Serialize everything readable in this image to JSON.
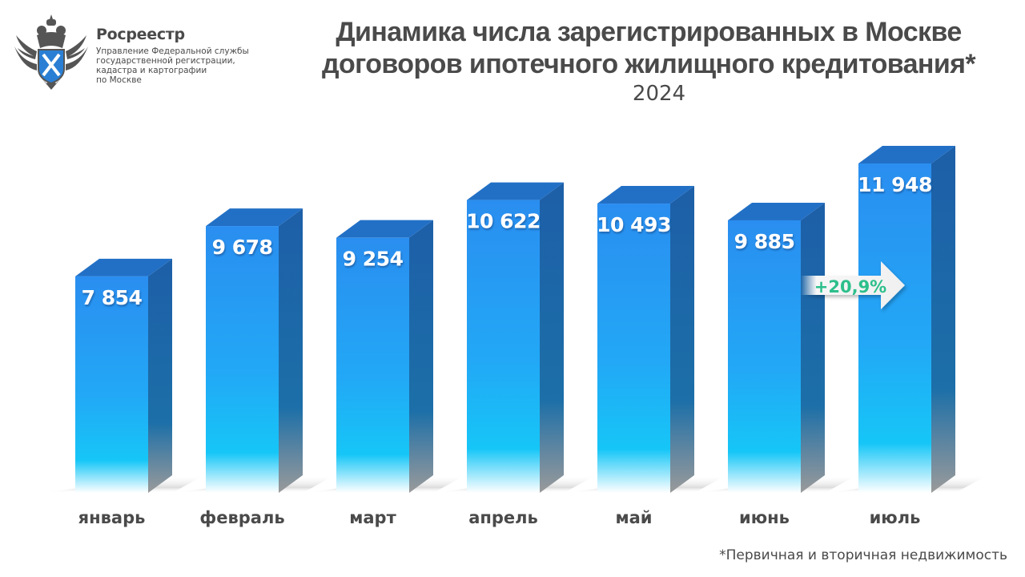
{
  "org": {
    "name": "Росреестр",
    "subtitle_lines": [
      "Управление Федеральной службы",
      "государственной регистрации,",
      "кадастра и картографии",
      "по Москве"
    ]
  },
  "header": {
    "title_lines": [
      "Динамика числа зарегистрированных в Москве",
      "договоров ипотечного жилищного кредитования*"
    ],
    "year": "2024"
  },
  "footnote": "*Первичная и вторичная недвижимость",
  "colors": {
    "bar_front_top": "#2a8ff0",
    "bar_front_mid": "#1fb8f5",
    "bar_side": "#1d63ad",
    "bar_top": "#2270c6",
    "text": "#4a4a4a",
    "growth": "#2dbf8b"
  },
  "chart_data": {
    "type": "bar",
    "title": "Динамика числа зарегистрированных в Москве договоров ипотечного жилищного кредитования*",
    "subtitle": "2024",
    "xlabel": "",
    "ylabel": "",
    "categories": [
      "январь",
      "февраль",
      "март",
      "апрель",
      "май",
      "июнь",
      "июль"
    ],
    "values": [
      7854,
      9678,
      9254,
      10622,
      10493,
      9885,
      11948
    ],
    "value_labels": [
      "7 854",
      "9 678",
      "9 254",
      "10 622",
      "10 493",
      "9 885",
      "11 948"
    ],
    "ylim": [
      0,
      12000
    ],
    "grid": false,
    "legend": "none",
    "annotations": [
      {
        "text": "+20,9%",
        "from": "июнь",
        "to": "июль",
        "type": "arrow"
      }
    ]
  }
}
